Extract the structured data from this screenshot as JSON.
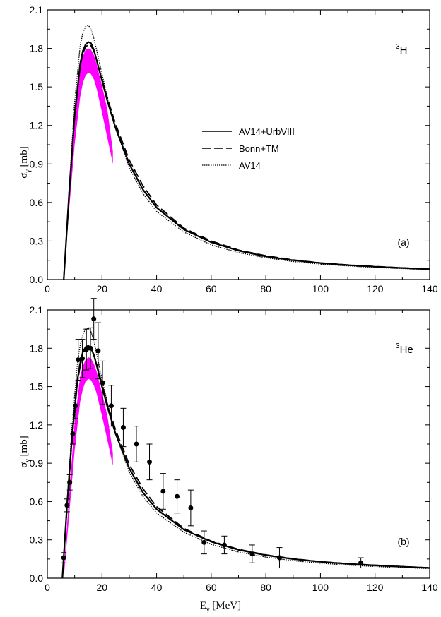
{
  "chart_data": [
    {
      "type": "line",
      "panel_label": "(a)",
      "nucleus": {
        "mass": "3",
        "symbol": "H"
      },
      "ylabel": {
        "base": "σ",
        "sub": "γ",
        "unit": " [mb]"
      },
      "xlabel": {
        "base": "",
        "sub": "",
        "unit": ""
      },
      "xlim": [
        0,
        140
      ],
      "ylim": [
        0,
        2.1
      ],
      "x_ticks": [
        "0",
        "20",
        "40",
        "60",
        "80",
        "100",
        "120",
        "140"
      ],
      "y_ticks": [
        "0.0",
        "0.3",
        "0.6",
        "0.9",
        "1.2",
        "1.5",
        "1.8",
        "2.1"
      ],
      "legend": [
        {
          "label": "AV14+UrbVIII",
          "style": "solid"
        },
        {
          "label": "Bonn+TM",
          "style": "dashed"
        },
        {
          "label": "AV14",
          "style": "dotted"
        }
      ],
      "series": [
        {
          "name": "AV14+UrbVIII",
          "style": "solid",
          "x": [
            6,
            8,
            10,
            12,
            13,
            14,
            15,
            16,
            17,
            18,
            20,
            22,
            25,
            30,
            35,
            40,
            50,
            60,
            70,
            80,
            90,
            100,
            110,
            120,
            130,
            140
          ],
          "y": [
            0,
            0.68,
            1.28,
            1.68,
            1.78,
            1.83,
            1.85,
            1.84,
            1.79,
            1.71,
            1.55,
            1.39,
            1.18,
            0.9,
            0.7,
            0.56,
            0.39,
            0.29,
            0.225,
            0.18,
            0.15,
            0.128,
            0.112,
            0.1,
            0.09,
            0.08
          ]
        },
        {
          "name": "Bonn+TM",
          "style": "dashed",
          "x": [
            6,
            8,
            10,
            12,
            13,
            14,
            15,
            16,
            17,
            18,
            20,
            22,
            25,
            30,
            35,
            40,
            50,
            60,
            70,
            80,
            90,
            100,
            110,
            120,
            130,
            140
          ],
          "y": [
            0,
            0.66,
            1.26,
            1.66,
            1.76,
            1.81,
            1.83,
            1.82,
            1.78,
            1.71,
            1.56,
            1.41,
            1.21,
            0.93,
            0.73,
            0.58,
            0.4,
            0.3,
            0.23,
            0.185,
            0.153,
            0.13,
            0.114,
            0.102,
            0.091,
            0.082
          ]
        },
        {
          "name": "AV14",
          "style": "dotted",
          "x": [
            6,
            8,
            10,
            12,
            13,
            14,
            15,
            16,
            17,
            18,
            20,
            22,
            25,
            30,
            35,
            40,
            50,
            60,
            70,
            80,
            90,
            100,
            110,
            120,
            130,
            140
          ],
          "y": [
            0,
            0.72,
            1.38,
            1.82,
            1.92,
            1.97,
            1.98,
            1.95,
            1.88,
            1.79,
            1.6,
            1.42,
            1.18,
            0.87,
            0.67,
            0.53,
            0.37,
            0.27,
            0.21,
            0.17,
            0.14,
            0.12,
            0.106,
            0.094,
            0.085,
            0.077
          ]
        }
      ],
      "band": {
        "color": "#ff00ff",
        "x": [
          6,
          8,
          10,
          12,
          13,
          14,
          15,
          16,
          17,
          18,
          20,
          22,
          24
        ],
        "upper": [
          0.05,
          0.7,
          1.28,
          1.66,
          1.74,
          1.79,
          1.8,
          1.79,
          1.75,
          1.68,
          1.51,
          1.32,
          1.0
        ],
        "lower": [
          0,
          0.55,
          1.05,
          1.42,
          1.53,
          1.59,
          1.61,
          1.6,
          1.56,
          1.49,
          1.3,
          1.1,
          0.9
        ]
      }
    },
    {
      "type": "line",
      "panel_label": "(b)",
      "nucleus": {
        "mass": "3",
        "symbol": "He"
      },
      "ylabel": {
        "base": "σ",
        "sub": "γ",
        "unit": " [mb]"
      },
      "xlabel": {
        "base": "E",
        "sub": "γ",
        "unit": " [MeV]"
      },
      "xlim": [
        0,
        140
      ],
      "ylim": [
        0,
        2.1
      ],
      "x_ticks": [
        "0",
        "20",
        "40",
        "60",
        "80",
        "100",
        "120",
        "140"
      ],
      "y_ticks": [
        "0.0",
        "0.3",
        "0.6",
        "0.9",
        "1.2",
        "1.5",
        "1.8",
        "2.1"
      ],
      "series": [
        {
          "name": "AV14+UrbVIII",
          "style": "solid",
          "x": [
            5.5,
            7,
            9,
            11,
            12,
            13,
            14,
            15,
            16,
            17,
            18,
            20,
            22,
            25,
            30,
            35,
            40,
            50,
            60,
            70,
            80,
            90,
            100,
            110,
            120,
            130,
            140
          ],
          "y": [
            0,
            0.5,
            1.1,
            1.55,
            1.68,
            1.77,
            1.81,
            1.82,
            1.8,
            1.75,
            1.67,
            1.5,
            1.34,
            1.13,
            0.86,
            0.67,
            0.54,
            0.38,
            0.285,
            0.222,
            0.18,
            0.15,
            0.128,
            0.112,
            0.1,
            0.09,
            0.08
          ]
        },
        {
          "name": "Bonn+TM",
          "style": "dashed",
          "x": [
            5.5,
            7,
            9,
            11,
            12,
            13,
            14,
            15,
            16,
            17,
            18,
            20,
            22,
            25,
            30,
            35,
            40,
            50,
            60,
            70,
            80,
            90,
            100,
            110,
            120,
            130,
            140
          ],
          "y": [
            0,
            0.48,
            1.08,
            1.53,
            1.66,
            1.75,
            1.79,
            1.8,
            1.79,
            1.75,
            1.68,
            1.52,
            1.36,
            1.16,
            0.89,
            0.7,
            0.56,
            0.39,
            0.29,
            0.226,
            0.183,
            0.152,
            0.13,
            0.114,
            0.102,
            0.091,
            0.082
          ]
        },
        {
          "name": "AV14",
          "style": "dotted",
          "x": [
            5.5,
            7,
            9,
            11,
            12,
            13,
            14,
            15,
            16,
            17,
            18,
            20,
            22,
            25,
            30,
            35,
            40,
            50,
            60,
            70,
            80,
            90,
            100,
            110,
            120,
            130,
            140
          ],
          "y": [
            0,
            0.52,
            1.18,
            1.68,
            1.82,
            1.91,
            1.95,
            1.96,
            1.93,
            1.86,
            1.76,
            1.56,
            1.37,
            1.13,
            0.83,
            0.64,
            0.51,
            0.36,
            0.265,
            0.205,
            0.165,
            0.137,
            0.117,
            0.103,
            0.092,
            0.083,
            0.075
          ]
        }
      ],
      "band": {
        "color": "#ff00ff",
        "x": [
          6,
          8,
          10,
          12,
          13,
          14,
          15,
          16,
          17,
          18,
          20,
          22,
          24
        ],
        "upper": [
          0.05,
          0.65,
          1.22,
          1.58,
          1.66,
          1.71,
          1.73,
          1.72,
          1.68,
          1.62,
          1.45,
          1.27,
          0.98
        ],
        "lower": [
          0,
          0.5,
          1.0,
          1.38,
          1.48,
          1.54,
          1.56,
          1.55,
          1.51,
          1.45,
          1.27,
          1.08,
          0.88
        ]
      },
      "data_points": [
        {
          "x": 6.0,
          "y": 0.16,
          "err": 0.04
        },
        {
          "x": 7.2,
          "y": 0.57,
          "err": 0.05
        },
        {
          "x": 8.2,
          "y": 0.75,
          "err": 0.06
        },
        {
          "x": 9.3,
          "y": 1.13,
          "err": 0.08
        },
        {
          "x": 10.3,
          "y": 1.35,
          "err": 0.1
        },
        {
          "x": 11.3,
          "y": 1.71,
          "err": 0.16
        },
        {
          "x": 12.8,
          "y": 1.72,
          "err": 0.15
        },
        {
          "x": 14.3,
          "y": 1.79,
          "err": 0.16
        },
        {
          "x": 15.8,
          "y": 1.8,
          "err": 0.16
        },
        {
          "x": 17.0,
          "y": 2.03,
          "err": 0.16
        },
        {
          "x": 18.6,
          "y": 1.78,
          "err": 0.22
        },
        {
          "x": 20.2,
          "y": 1.53,
          "err": 0.17
        },
        {
          "x": 23.4,
          "y": 1.35,
          "err": 0.16
        },
        {
          "x": 27.8,
          "y": 1.18,
          "err": 0.15
        },
        {
          "x": 32.6,
          "y": 1.05,
          "err": 0.14
        },
        {
          "x": 37.4,
          "y": 0.91,
          "err": 0.14
        },
        {
          "x": 42.4,
          "y": 0.68,
          "err": 0.14
        },
        {
          "x": 47.5,
          "y": 0.64,
          "err": 0.13
        },
        {
          "x": 52.5,
          "y": 0.55,
          "err": 0.14
        },
        {
          "x": 57.4,
          "y": 0.28,
          "err": 0.09
        },
        {
          "x": 64.8,
          "y": 0.26,
          "err": 0.07
        },
        {
          "x": 75.0,
          "y": 0.19,
          "err": 0.07
        },
        {
          "x": 85.0,
          "y": 0.16,
          "err": 0.08
        },
        {
          "x": 114.8,
          "y": 0.12,
          "err": 0.04
        }
      ]
    }
  ]
}
